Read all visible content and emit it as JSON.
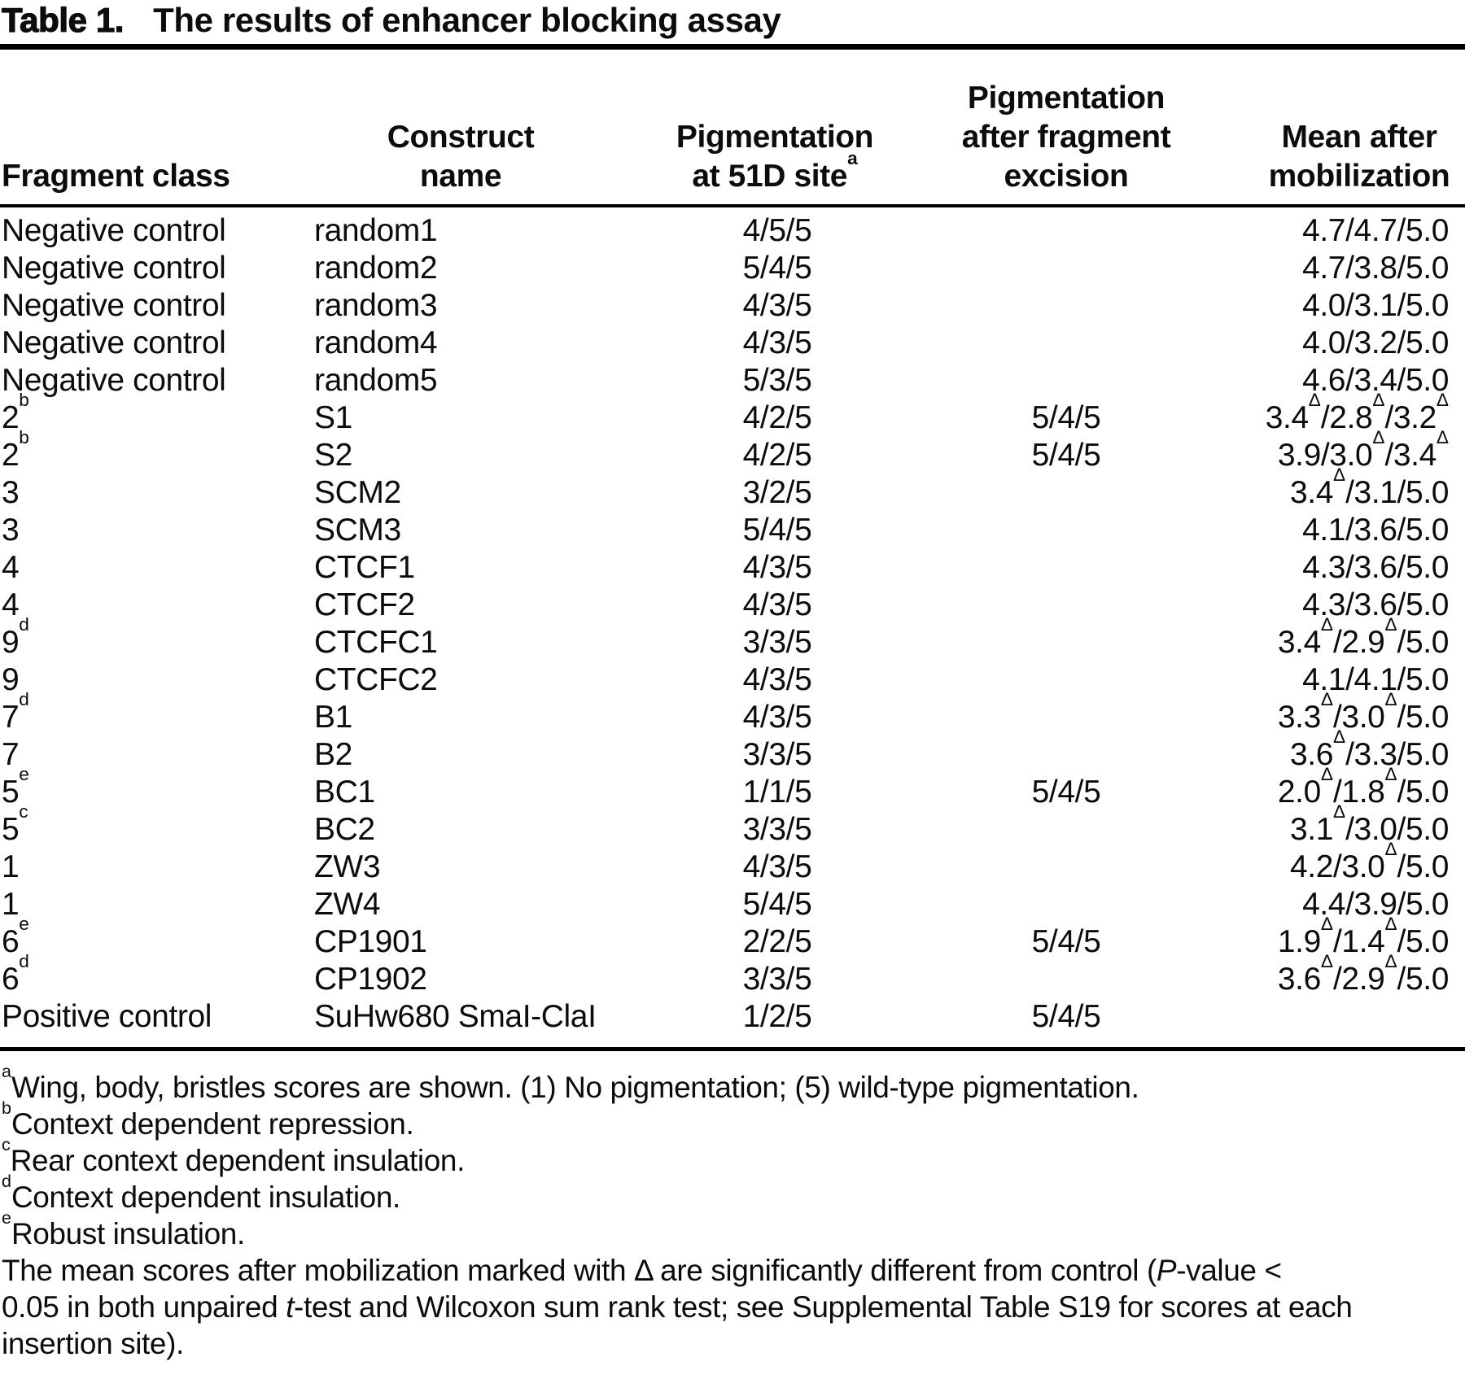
{
  "title": {
    "label": "Table 1.",
    "text": "The results of enhancer blocking assay"
  },
  "table": {
    "columns": [
      "Fragment class",
      "Construct\nname",
      "Pigmentation\nat 51D site^a",
      "Pigmentation\nafter fragment\nexcision",
      "Mean after\nmobilization"
    ],
    "rows": [
      [
        "Negative control",
        "random1",
        "4/5/5",
        "",
        "4.7/4.7/5.0"
      ],
      [
        "Negative control",
        "random2",
        "5/4/5",
        "",
        "4.7/3.8/5.0"
      ],
      [
        "Negative control",
        "random3",
        "4/3/5",
        "",
        "4.0/3.1/5.0"
      ],
      [
        "Negative control",
        "random4",
        "4/3/5",
        "",
        "4.0/3.2/5.0"
      ],
      [
        "Negative control",
        "random5",
        "5/3/5",
        "",
        "4.6/3.4/5.0"
      ],
      [
        "2^b",
        "S1",
        "4/2/5",
        "5/4/5",
        "3.4^Δ/2.8^Δ/3.2^Δ"
      ],
      [
        "2^b",
        "S2",
        "4/2/5",
        "5/4/5",
        "3.9/3.0^Δ/3.4^Δ"
      ],
      [
        "3",
        "SCM2",
        "3/2/5",
        "",
        "3.4^Δ/3.1/5.0"
      ],
      [
        "3",
        "SCM3",
        "5/4/5",
        "",
        "4.1/3.6/5.0"
      ],
      [
        "4",
        "CTCF1",
        "4/3/5",
        "",
        "4.3/3.6/5.0"
      ],
      [
        "4",
        "CTCF2",
        "4/3/5",
        "",
        "4.3/3.6/5.0"
      ],
      [
        "9^d",
        "CTCFC1",
        "3/3/5",
        "",
        "3.4^Δ/2.9^Δ/5.0"
      ],
      [
        "9",
        "CTCFC2",
        "4/3/5",
        "",
        "4.1/4.1/5.0"
      ],
      [
        "7^d",
        "B1",
        "4/3/5",
        "",
        "3.3^Δ/3.0^Δ/5.0"
      ],
      [
        "7",
        "B2",
        "3/3/5",
        "",
        "3.6^Δ/3.3/5.0"
      ],
      [
        "5^e",
        "BC1",
        "1/1/5",
        "5/4/5",
        "2.0^Δ/1.8^Δ/5.0"
      ],
      [
        "5^c",
        "BC2",
        "3/3/5",
        "",
        "3.1^Δ/3.0/5.0"
      ],
      [
        "1",
        "ZW3",
        "4/3/5",
        "",
        "4.2/3.0^Δ/5.0"
      ],
      [
        "1",
        "ZW4",
        "5/4/5",
        "",
        "4.4/3.9/5.0"
      ],
      [
        "6^e",
        "CP1901",
        "2/2/5",
        "5/4/5",
        "1.9^Δ/1.4^Δ/5.0"
      ],
      [
        "6^d",
        "CP1902",
        "3/3/5",
        "",
        "3.6^Δ/2.9^Δ/5.0"
      ],
      [
        "Positive control",
        "SuHw680 SmaI-ClaI",
        "1/2/5",
        "5/4/5",
        ""
      ]
    ]
  },
  "footnotes": [
    "^aWing, body, bristles scores are shown. (1) No pigmentation; (5) wild-type pigmentation.",
    "^bContext dependent repression.",
    "^cRear context dependent insulation.",
    "^dContext dependent insulation.",
    "^eRobust insulation.",
    "The mean scores after mobilization marked with Δ are significantly different from control (*P*-value <",
    "0.05 in both unpaired *t*-test and Wilcoxon sum rank test; see Supplemental Table S19 for scores at each",
    "insertion site)."
  ],
  "colors": {
    "text": "#0c0c0c",
    "rule": "#000000",
    "background": "#ffffff"
  }
}
